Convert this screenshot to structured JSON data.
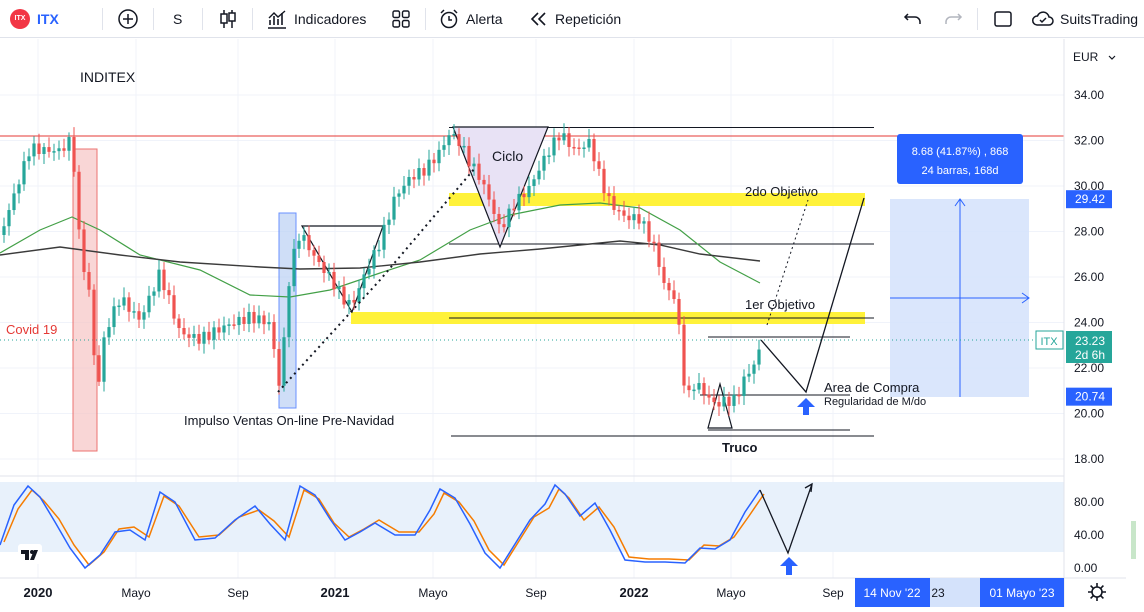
{
  "toolbar": {
    "symbol_logo": "ITX",
    "symbol": "ITX",
    "interval": "S",
    "indicators_label": "Indicadores",
    "alert_label": "Alerta",
    "replay_label": "Repetición",
    "brand_label": "SuitsTrading"
  },
  "chart_data": {
    "type": "candlestick",
    "title": "INDITEX",
    "currency": "EUR",
    "ylim": [
      17.5,
      35.2
    ],
    "price_ticks": [
      "34.00",
      "32.00",
      "30.00",
      "28.00",
      "26.00",
      "24.00",
      "22.00",
      "20.00",
      "18.00"
    ],
    "time_ticks": [
      "2020",
      "Mayo",
      "Sep",
      "2021",
      "Mayo",
      "Sep",
      "2022",
      "Mayo",
      "Sep"
    ],
    "current_price": {
      "symbol": "ITX",
      "value": "23.23",
      "countdown": "2d 6h"
    },
    "price_labels": [
      {
        "value": "29.42",
        "color": "#2962ff"
      },
      {
        "value": "20.74",
        "color": "#2962ff"
      }
    ],
    "measure_box": {
      "line1": "8.68 (41.87%) , 868",
      "line2": "24 barras, 168d"
    },
    "annotations": {
      "covid": "Covid 19",
      "impulso": "Impulso Ventas On-line Pre-Navidad",
      "ciclo": "Ciclo",
      "objetivo2": "2do Objetivo",
      "objetivo1": "1er Objetivo",
      "area_compra": "Area de Compra",
      "regularidad": "Regularidad de M/do",
      "truco": "Truco"
    },
    "date_labels": [
      "14 Nov '22",
      "01 Mayo '23"
    ],
    "date_label_partial": "23",
    "oscillator": {
      "ticks": [
        "80.00",
        "40.00",
        "0.00"
      ],
      "levels": [
        80,
        20
      ]
    }
  }
}
